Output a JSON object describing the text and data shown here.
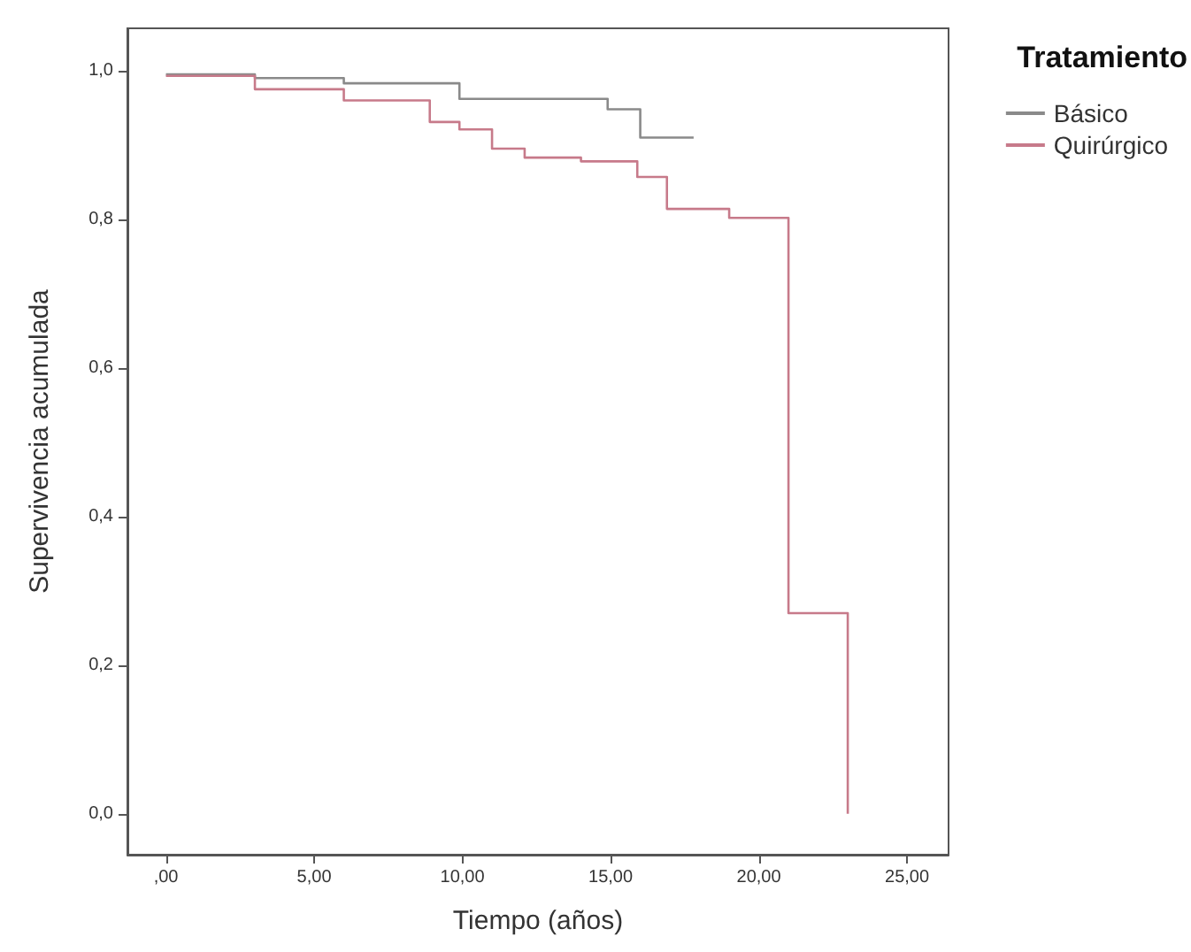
{
  "chart_data": {
    "type": "step",
    "xlabel": "Tiempo (años)",
    "ylabel": "Supervivencia acumulada",
    "legend_title": "Tratamiento",
    "series": [
      {
        "name": "Básico",
        "color": "#8a8a8a",
        "x": [
          0,
          3,
          6,
          9.9,
          14.9,
          16,
          17.8
        ],
        "values": [
          0.995,
          0.99,
          0.983,
          0.962,
          0.948,
          0.91,
          0.91
        ]
      },
      {
        "name": "Quirúrgico",
        "color": "#c77a8a",
        "x": [
          0,
          3,
          6,
          8.9,
          9.9,
          11,
          12.1,
          14,
          15.9,
          16.9,
          19,
          21,
          23
        ],
        "values": [
          0.993,
          0.975,
          0.96,
          0.931,
          0.921,
          0.895,
          0.883,
          0.878,
          0.857,
          0.814,
          0.802,
          0.27,
          0.0
        ]
      }
    ],
    "xlim": [
      -1.3,
      26.4
    ],
    "ylim": [
      -0.055,
      1.057
    ],
    "xticks": [
      {
        "value": 0,
        "label": ",00"
      },
      {
        "value": 5,
        "label": "5,00"
      },
      {
        "value": 10,
        "label": "10,00"
      },
      {
        "value": 15,
        "label": "15,00"
      },
      {
        "value": 20,
        "label": "20,00"
      },
      {
        "value": 25,
        "label": "25,00"
      }
    ],
    "yticks": [
      {
        "value": 0,
        "label": "0,0"
      },
      {
        "value": 0.2,
        "label": "0,2"
      },
      {
        "value": 0.4,
        "label": "0,4"
      },
      {
        "value": 0.6,
        "label": "0,6"
      },
      {
        "value": 0.8,
        "label": "0,8"
      },
      {
        "value": 1,
        "label": "1,0"
      }
    ],
    "grid": false,
    "legend": "right",
    "marker": "none",
    "line_style": "solid"
  }
}
